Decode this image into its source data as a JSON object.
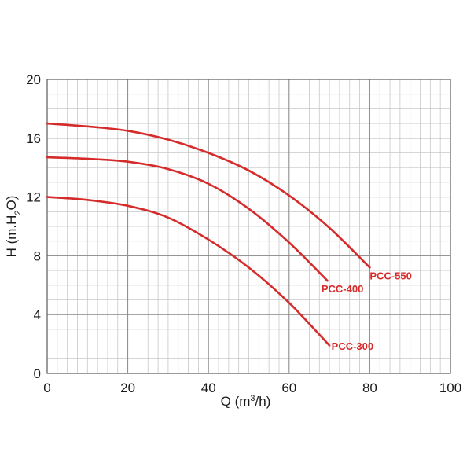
{
  "chart_data": {
    "type": "line",
    "xlim": [
      0,
      100
    ],
    "ylim": [
      0,
      20
    ],
    "x_ticks": [
      0,
      20,
      40,
      60,
      80,
      100
    ],
    "y_ticks": [
      0,
      4,
      8,
      12,
      16,
      20
    ],
    "x_minor_step": 2.5,
    "y_minor_step": 1,
    "grid": true,
    "xlabel": {
      "pre": "Q (m",
      "sup": "3",
      "post": "/h)"
    },
    "ylabel": {
      "pre": "H (m.H",
      "sub": "2",
      "post": "O)"
    },
    "series_color": "#d62b2b",
    "grid_minor_color": "#c8c8c8",
    "grid_major_color": "#8a8a8a",
    "series": [
      {
        "name": "PCC-550",
        "label_anchor": [
          80,
          6.4
        ],
        "x": [
          0,
          10,
          20,
          30,
          40,
          50,
          60,
          70,
          80
        ],
        "y": [
          17.0,
          16.8,
          16.5,
          15.9,
          15.0,
          13.8,
          12.1,
          9.9,
          7.2
        ]
      },
      {
        "name": "PCC-400",
        "label_anchor": [
          68,
          5.5
        ],
        "x": [
          0,
          10,
          20,
          30,
          40,
          50,
          60,
          69.5
        ],
        "y": [
          14.7,
          14.6,
          14.4,
          13.9,
          12.9,
          11.2,
          8.9,
          6.3
        ]
      },
      {
        "name": "PCC-300",
        "label_anchor": [
          70.5,
          1.6
        ],
        "x": [
          0,
          10,
          20,
          30,
          40,
          50,
          60,
          70
        ],
        "y": [
          12.0,
          11.8,
          11.4,
          10.6,
          9.1,
          7.2,
          4.8,
          1.9
        ]
      }
    ]
  }
}
